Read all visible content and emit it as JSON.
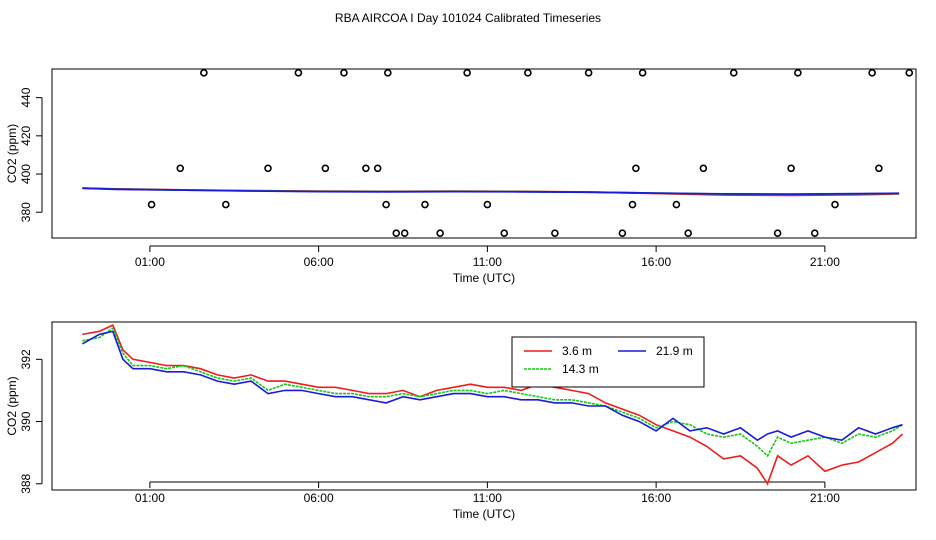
{
  "title": "RBA AIRCOA I  Day 101024  Calibrated Timeseries",
  "colors": {
    "s36": "#ee1c1c",
    "s143": "#14c814",
    "s219": "#1a1adc"
  },
  "chart_data": [
    {
      "type": "line+scatter",
      "ylabel": "CO2 (ppm)",
      "xlabel": "Time (UTC)",
      "xlim_hours": [
        -1.9,
        23.7
      ],
      "ylim": [
        366.5,
        455
      ],
      "x_ticks": [
        {
          "h": 1,
          "label": "01:00"
        },
        {
          "h": 6,
          "label": "06:00"
        },
        {
          "h": 11,
          "label": "11:00"
        },
        {
          "h": 16,
          "label": "16:00"
        },
        {
          "h": 21,
          "label": "21:00"
        }
      ],
      "y_ticks": [
        {
          "v": 380,
          "label": "380"
        },
        {
          "v": 400,
          "label": "400"
        },
        {
          "v": 420,
          "label": "420"
        },
        {
          "v": 440,
          "label": "440"
        }
      ],
      "flag_points": {
        "x_hours": [
          1.05,
          1.9,
          2.6,
          3.25,
          4.5,
          5.4,
          6.2,
          6.75,
          7.4,
          7.75,
          8.0,
          8.05,
          8.3,
          8.55,
          9.15,
          9.6,
          10.4,
          11.0,
          11.5,
          12.2,
          13.0,
          14.0,
          15.0,
          15.3,
          15.4,
          15.6,
          16.6,
          16.95,
          17.4,
          18.3,
          19.6,
          20.0,
          20.2,
          20.7,
          21.3,
          22.4,
          22.6,
          23.5
        ],
        "y": [
          384,
          403,
          453,
          384,
          403,
          453,
          403,
          453,
          403,
          403,
          384,
          453,
          369,
          369,
          384,
          369,
          453,
          384,
          369,
          453,
          369,
          453,
          369,
          384,
          403,
          453,
          384,
          369,
          403,
          453,
          369,
          403,
          453,
          369,
          384,
          453,
          403,
          453
        ]
      },
      "series": [
        {
          "name": "3.6 m",
          "color_key": "s36",
          "x_hours": [
            -1.0,
            0.0,
            2.0,
            4.0,
            6.0,
            8.0,
            10.0,
            12.0,
            14.0,
            16.0,
            18.0,
            20.0,
            22.0,
            23.2
          ],
          "values": [
            392.6,
            392.2,
            391.7,
            391.3,
            391.0,
            390.9,
            391.0,
            390.9,
            390.6,
            389.8,
            389.0,
            388.8,
            389.2,
            389.6
          ]
        },
        {
          "name": "14.3 m",
          "color_key": "s143",
          "x_hours": [
            -1.0,
            0.0,
            2.0,
            4.0,
            6.0,
            8.0,
            10.0,
            12.0,
            14.0,
            16.0,
            18.0,
            20.0,
            22.0,
            23.2
          ],
          "values": [
            392.6,
            392.1,
            391.6,
            391.2,
            390.9,
            390.8,
            390.9,
            390.8,
            390.5,
            390.0,
            389.5,
            389.4,
            389.6,
            389.8
          ]
        },
        {
          "name": "21.9 m",
          "color_key": "s219",
          "x_hours": [
            -1.0,
            0.0,
            2.0,
            4.0,
            6.0,
            8.0,
            10.0,
            12.0,
            14.0,
            16.0,
            18.0,
            20.0,
            22.0,
            23.2
          ],
          "values": [
            392.6,
            392.0,
            391.6,
            391.1,
            390.8,
            390.7,
            390.8,
            390.7,
            390.5,
            390.0,
            389.6,
            389.5,
            389.7,
            389.9
          ]
        }
      ]
    },
    {
      "type": "line",
      "ylabel": "CO2 (ppm)",
      "xlabel": "Time (UTC)",
      "xlim_hours": [
        -1.9,
        23.7
      ],
      "ylim": [
        387.8,
        393.2
      ],
      "legend": "top-center",
      "x_ticks": [
        {
          "h": 1,
          "label": "01:00"
        },
        {
          "h": 6,
          "label": "06:00"
        },
        {
          "h": 11,
          "label": "11:00"
        },
        {
          "h": 16,
          "label": "16:00"
        },
        {
          "h": 21,
          "label": "21:00"
        }
      ],
      "y_ticks": [
        {
          "v": 388,
          "label": "388"
        },
        {
          "v": 390,
          "label": "390"
        },
        {
          "v": 392,
          "label": "392"
        }
      ],
      "series": [
        {
          "name": "3.6 m",
          "color_key": "s36",
          "x_hours": [
            -1.0,
            -0.5,
            -0.1,
            0.2,
            0.5,
            1.0,
            1.5,
            2.0,
            2.5,
            3.0,
            3.5,
            4.0,
            4.5,
            5.0,
            5.5,
            6.0,
            6.5,
            7.0,
            7.5,
            8.0,
            8.5,
            9.0,
            9.5,
            10.0,
            10.5,
            11.0,
            11.5,
            12.0,
            12.5,
            13.0,
            13.5,
            14.0,
            14.5,
            15.0,
            15.5,
            16.0,
            16.5,
            17.0,
            17.5,
            18.0,
            18.5,
            19.0,
            19.3,
            19.6,
            20.0,
            20.5,
            21.0,
            21.5,
            22.0,
            22.5,
            23.0,
            23.3
          ],
          "values": [
            392.8,
            392.9,
            393.1,
            392.3,
            392.0,
            391.9,
            391.8,
            391.8,
            391.7,
            391.5,
            391.4,
            391.5,
            391.3,
            391.3,
            391.2,
            391.1,
            391.1,
            391.0,
            390.9,
            390.9,
            391.0,
            390.8,
            391.0,
            391.1,
            391.2,
            391.1,
            391.1,
            391.0,
            391.2,
            391.1,
            391.0,
            390.9,
            390.6,
            390.4,
            390.2,
            389.9,
            389.7,
            389.5,
            389.2,
            388.8,
            388.9,
            388.5,
            388.0,
            388.9,
            388.6,
            388.9,
            388.4,
            388.6,
            388.7,
            389.0,
            389.3,
            389.6
          ]
        },
        {
          "name": "14.3 m",
          "color_key": "s143",
          "x_hours": [
            -1.0,
            -0.5,
            -0.1,
            0.2,
            0.5,
            1.0,
            1.5,
            2.0,
            2.5,
            3.0,
            3.5,
            4.0,
            4.5,
            5.0,
            5.5,
            6.0,
            6.5,
            7.0,
            7.5,
            8.0,
            8.5,
            9.0,
            9.5,
            10.0,
            10.5,
            11.0,
            11.5,
            12.0,
            12.5,
            13.0,
            13.5,
            14.0,
            14.5,
            15.0,
            15.5,
            16.0,
            16.5,
            17.0,
            17.5,
            18.0,
            18.5,
            19.0,
            19.3,
            19.6,
            20.0,
            20.5,
            21.0,
            21.5,
            22.0,
            22.5,
            23.0,
            23.3
          ],
          "values": [
            392.6,
            392.7,
            393.0,
            392.2,
            391.8,
            391.8,
            391.7,
            391.8,
            391.6,
            391.4,
            391.3,
            391.4,
            391.0,
            391.2,
            391.1,
            391.0,
            390.9,
            390.9,
            390.8,
            390.8,
            390.9,
            390.8,
            390.9,
            391.0,
            391.0,
            390.9,
            391.0,
            390.9,
            390.8,
            390.7,
            390.7,
            390.6,
            390.5,
            390.3,
            390.1,
            389.8,
            390.0,
            389.9,
            389.6,
            389.5,
            389.6,
            389.2,
            388.9,
            389.5,
            389.3,
            389.4,
            389.5,
            389.3,
            389.6,
            389.5,
            389.7,
            389.9
          ]
        },
        {
          "name": "21.9 m",
          "color_key": "s219",
          "x_hours": [
            -1.0,
            -0.5,
            -0.1,
            0.2,
            0.5,
            1.0,
            1.5,
            2.0,
            2.5,
            3.0,
            3.5,
            4.0,
            4.5,
            5.0,
            5.5,
            6.0,
            6.5,
            7.0,
            7.5,
            8.0,
            8.5,
            9.0,
            9.5,
            10.0,
            10.5,
            11.0,
            11.5,
            12.0,
            12.5,
            13.0,
            13.5,
            14.0,
            14.5,
            15.0,
            15.5,
            16.0,
            16.5,
            17.0,
            17.5,
            18.0,
            18.5,
            19.0,
            19.3,
            19.6,
            20.0,
            20.5,
            21.0,
            21.5,
            22.0,
            22.5,
            23.0,
            23.3
          ],
          "values": [
            392.5,
            392.8,
            392.9,
            392.0,
            391.7,
            391.7,
            391.6,
            391.6,
            391.5,
            391.3,
            391.2,
            391.3,
            390.9,
            391.0,
            391.0,
            390.9,
            390.8,
            390.8,
            390.7,
            390.6,
            390.8,
            390.7,
            390.8,
            390.9,
            390.9,
            390.8,
            390.8,
            390.7,
            390.7,
            390.6,
            390.6,
            390.5,
            390.5,
            390.2,
            390.0,
            389.7,
            390.1,
            389.7,
            389.8,
            389.6,
            389.8,
            389.4,
            389.6,
            389.7,
            389.5,
            389.7,
            389.5,
            389.4,
            389.8,
            389.6,
            389.8,
            389.9
          ]
        }
      ]
    }
  ]
}
